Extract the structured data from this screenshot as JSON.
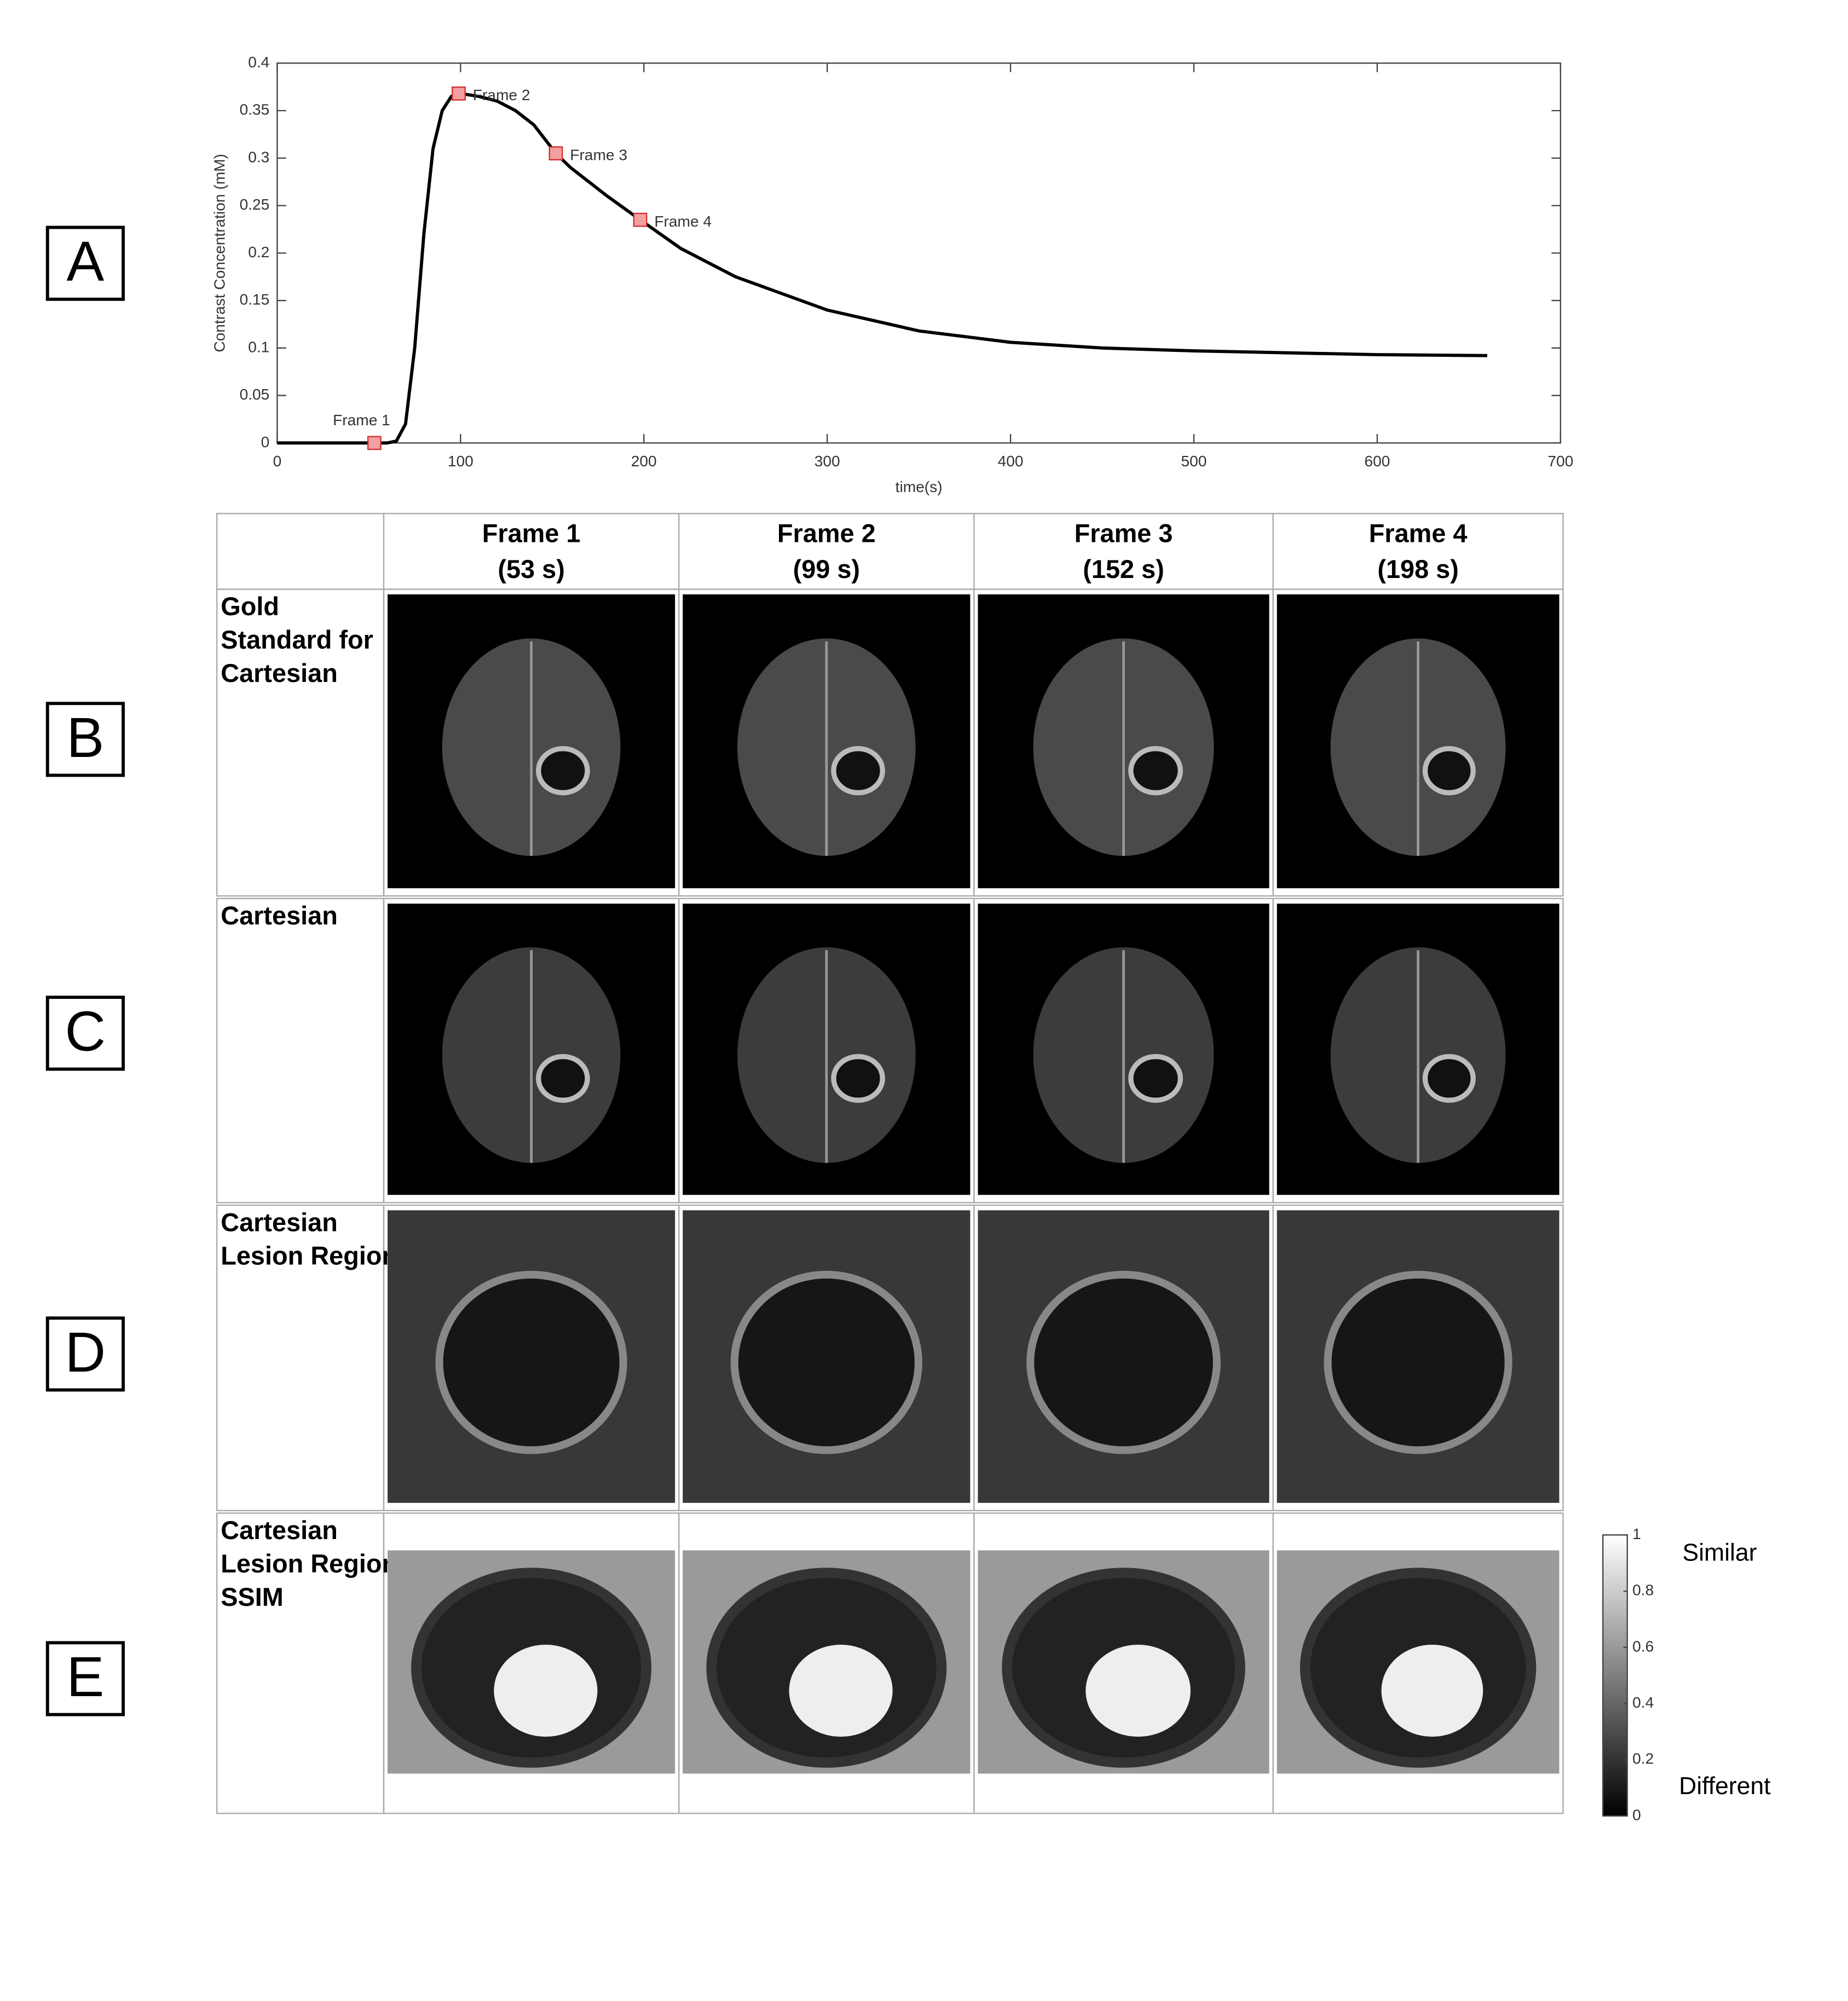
{
  "panel_labels": [
    "A",
    "B",
    "C",
    "D",
    "E"
  ],
  "chart_data": {
    "type": "line",
    "x_label": "time(s)",
    "y_label": "Contrast Concentration (mM)",
    "x": [
      0,
      20,
      40,
      60,
      65,
      70,
      75,
      80,
      85,
      90,
      95,
      100,
      110,
      120,
      130,
      140,
      152,
      160,
      180,
      198,
      220,
      250,
      300,
      350,
      400,
      450,
      500,
      550,
      600,
      660
    ],
    "values": [
      0,
      0,
      0,
      0,
      0.002,
      0.02,
      0.1,
      0.22,
      0.31,
      0.35,
      0.365,
      0.368,
      0.365,
      0.36,
      0.35,
      0.335,
      0.305,
      0.29,
      0.26,
      0.235,
      0.205,
      0.175,
      0.14,
      0.118,
      0.106,
      0.1,
      0.097,
      0.095,
      0.093,
      0.092
    ],
    "color": "#000000",
    "markers": {
      "x": [
        53,
        99,
        152,
        198
      ],
      "values": [
        0,
        0.368,
        0.305,
        0.235
      ],
      "labels": [
        "Frame 1",
        "Frame 2",
        "Frame 3",
        "Frame 4"
      ],
      "color": "#f4a0a0"
    },
    "xlim": [
      0,
      700
    ],
    "xticks": [
      0,
      100,
      200,
      300,
      400,
      500,
      600,
      700
    ],
    "ylim": [
      0,
      0.4
    ],
    "yticks": [
      0,
      0.05,
      0.1,
      0.15,
      0.2,
      0.25,
      0.3,
      0.35,
      0.4
    ]
  },
  "table": {
    "columns": [
      [
        "Frame 1",
        "(53 s)"
      ],
      [
        "Frame 2",
        "(99 s)"
      ],
      [
        "Frame 3",
        "(152 s)"
      ],
      [
        "Frame 4",
        "(198 s)"
      ]
    ],
    "rows": [
      [
        "Gold",
        "Standard for",
        "Cartesian"
      ],
      [
        "Cartesian"
      ],
      [
        "Cartesian",
        "Lesion Region"
      ],
      [
        "Cartesian",
        "Lesion Region",
        "SSIM"
      ]
    ]
  },
  "colorbar": {
    "ticks": [
      0,
      0.2,
      0.4,
      0.6,
      0.8,
      1
    ],
    "top_label": "Similar",
    "bottom_label": "Different"
  }
}
